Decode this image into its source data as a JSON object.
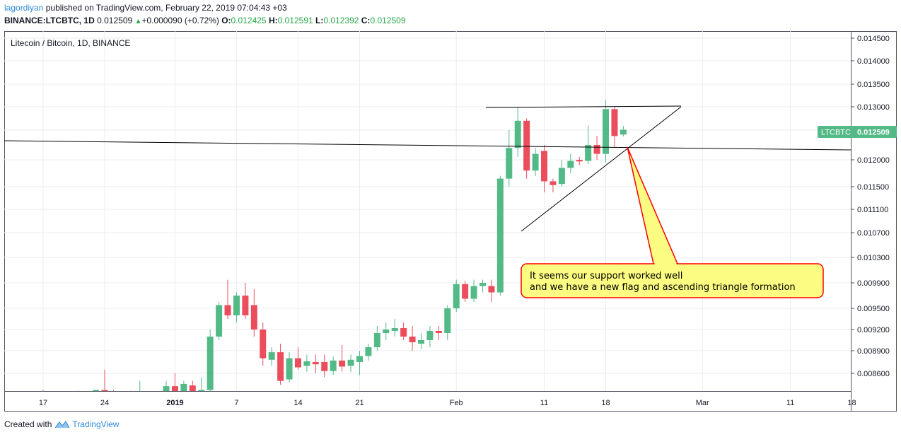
{
  "header": {
    "author": "lagordiyan",
    "published_text": "published on TradingView.com, February 22, 2019 07:04:43 +03",
    "symbol": "BINANCE:LTCBTC, 1D",
    "last": "0.012509",
    "change": "+0.000090 (+0.72%)",
    "o_label": "O:",
    "o_value": "0.012425",
    "h_label": "H:",
    "h_value": "0.012591",
    "l_label": "L:",
    "l_value": "0.012392",
    "c_label": "C:",
    "c_value": "0.012509"
  },
  "footer": {
    "created_with": "Created with",
    "brand": "TradingView"
  },
  "chart_data": {
    "type": "candlestick",
    "title": "Litecoin / Bitcoin, 1D, BINANCE",
    "price_ticks": [
      "0.014500",
      "0.014000",
      "0.013500",
      "0.013000",
      "0.012500",
      "0.012000",
      "0.011500",
      "0.011100",
      "0.010700",
      "0.010300",
      "0.009900",
      "0.009500",
      "0.009200",
      "0.008900",
      "0.008600"
    ],
    "x_ticks": [
      {
        "label": "17",
        "idx": 0
      },
      {
        "label": "24",
        "idx": 7
      },
      {
        "label": "2019",
        "idx": 15,
        "bold": true
      },
      {
        "label": "7",
        "idx": 22
      },
      {
        "label": "14",
        "idx": 29
      },
      {
        "label": "21",
        "idx": 36
      },
      {
        "label": "Feb",
        "idx": 47
      },
      {
        "label": "11",
        "idx": 57
      },
      {
        "label": "18",
        "idx": 64
      },
      {
        "label": "Mar",
        "idx": 75
      },
      {
        "label": "11",
        "idx": 85
      },
      {
        "label": "18",
        "idx": 92
      }
    ],
    "price_label": {
      "symbol": "LTCBTC",
      "value": "0.012509"
    },
    "colors": {
      "up": "#53b987",
      "down": "#eb4d5c",
      "grid": "#e9edf2",
      "annotation_bg": "#fbfc81",
      "annotation_border": "#ff0000"
    },
    "candles": [
      {
        "o": 0.00835,
        "h": 0.00838,
        "l": 0.00828,
        "c": 0.00832
      },
      {
        "o": 0.00832,
        "h": 0.00836,
        "l": 0.00829,
        "c": 0.00833
      },
      {
        "o": 0.00833,
        "h": 0.00836,
        "l": 0.00829,
        "c": 0.00831
      },
      {
        "o": 0.00831,
        "h": 0.00835,
        "l": 0.00828,
        "c": 0.00833
      },
      {
        "o": 0.00833,
        "h": 0.00837,
        "l": 0.00829,
        "c": 0.00831
      },
      {
        "o": 0.00831,
        "h": 0.00835,
        "l": 0.00828,
        "c": 0.00832
      },
      {
        "o": 0.00832,
        "h": 0.00836,
        "l": 0.00829,
        "c": 0.00838
      },
      {
        "o": 0.00838,
        "h": 0.00865,
        "l": 0.0083,
        "c": 0.00834
      },
      {
        "o": 0.00834,
        "h": 0.00838,
        "l": 0.00829,
        "c": 0.00831
      },
      {
        "o": 0.00831,
        "h": 0.00835,
        "l": 0.00828,
        "c": 0.00833
      },
      {
        "o": 0.00833,
        "h": 0.00837,
        "l": 0.00829,
        "c": 0.00832
      },
      {
        "o": 0.00832,
        "h": 0.0085,
        "l": 0.00829,
        "c": 0.00833
      },
      {
        "o": 0.00833,
        "h": 0.00836,
        "l": 0.00829,
        "c": 0.00831
      },
      {
        "o": 0.00831,
        "h": 0.00835,
        "l": 0.00828,
        "c": 0.00832
      },
      {
        "o": 0.0083,
        "h": 0.0085,
        "l": 0.00825,
        "c": 0.00843
      },
      {
        "o": 0.00843,
        "h": 0.0086,
        "l": 0.00835,
        "c": 0.00835
      },
      {
        "o": 0.00832,
        "h": 0.0085,
        "l": 0.00826,
        "c": 0.00846
      },
      {
        "o": 0.00844,
        "h": 0.0085,
        "l": 0.0083,
        "c": 0.00833
      },
      {
        "o": 0.00835,
        "h": 0.00855,
        "l": 0.0083,
        "c": 0.00838
      },
      {
        "o": 0.00838,
        "h": 0.0092,
        "l": 0.00835,
        "c": 0.0091
      },
      {
        "o": 0.0091,
        "h": 0.0096,
        "l": 0.00905,
        "c": 0.00955
      },
      {
        "o": 0.00955,
        "h": 0.00995,
        "l": 0.00935,
        "c": 0.0094
      },
      {
        "o": 0.0094,
        "h": 0.00975,
        "l": 0.0093,
        "c": 0.0097
      },
      {
        "o": 0.0097,
        "h": 0.0099,
        "l": 0.00935,
        "c": 0.0094
      },
      {
        "o": 0.00955,
        "h": 0.0098,
        "l": 0.0091,
        "c": 0.0092
      },
      {
        "o": 0.0092,
        "h": 0.0093,
        "l": 0.0087,
        "c": 0.0088
      },
      {
        "o": 0.00878,
        "h": 0.00895,
        "l": 0.0087,
        "c": 0.00888
      },
      {
        "o": 0.00888,
        "h": 0.009,
        "l": 0.00845,
        "c": 0.0085
      },
      {
        "o": 0.00852,
        "h": 0.00888,
        "l": 0.00848,
        "c": 0.0088
      },
      {
        "o": 0.0088,
        "h": 0.00895,
        "l": 0.00865,
        "c": 0.00868
      },
      {
        "o": 0.0087,
        "h": 0.00885,
        "l": 0.00862,
        "c": 0.00876
      },
      {
        "o": 0.00875,
        "h": 0.00885,
        "l": 0.0086,
        "c": 0.00872
      },
      {
        "o": 0.00875,
        "h": 0.00885,
        "l": 0.00855,
        "c": 0.00863
      },
      {
        "o": 0.00863,
        "h": 0.00882,
        "l": 0.00858,
        "c": 0.00877
      },
      {
        "o": 0.00877,
        "h": 0.00898,
        "l": 0.00862,
        "c": 0.00869
      },
      {
        "o": 0.0087,
        "h": 0.00885,
        "l": 0.00862,
        "c": 0.00878
      },
      {
        "o": 0.00875,
        "h": 0.0089,
        "l": 0.00858,
        "c": 0.00883
      },
      {
        "o": 0.00883,
        "h": 0.009,
        "l": 0.00877,
        "c": 0.00895
      },
      {
        "o": 0.00895,
        "h": 0.00925,
        "l": 0.0089,
        "c": 0.00915
      },
      {
        "o": 0.00915,
        "h": 0.0093,
        "l": 0.00905,
        "c": 0.0092
      },
      {
        "o": 0.00918,
        "h": 0.00935,
        "l": 0.0091,
        "c": 0.00922
      },
      {
        "o": 0.00922,
        "h": 0.0093,
        "l": 0.00905,
        "c": 0.0091
      },
      {
        "o": 0.0091,
        "h": 0.00925,
        "l": 0.0089,
        "c": 0.00902
      },
      {
        "o": 0.009,
        "h": 0.00915,
        "l": 0.00892,
        "c": 0.00905
      },
      {
        "o": 0.00905,
        "h": 0.00925,
        "l": 0.00895,
        "c": 0.00918
      },
      {
        "o": 0.00918,
        "h": 0.00925,
        "l": 0.00905,
        "c": 0.00915
      },
      {
        "o": 0.00915,
        "h": 0.00955,
        "l": 0.00905,
        "c": 0.0095
      },
      {
        "o": 0.0095,
        "h": 0.00995,
        "l": 0.00945,
        "c": 0.00988
      },
      {
        "o": 0.00988,
        "h": 0.00993,
        "l": 0.0096,
        "c": 0.00965
      },
      {
        "o": 0.00965,
        "h": 0.00995,
        "l": 0.0096,
        "c": 0.00985
      },
      {
        "o": 0.00985,
        "h": 0.00995,
        "l": 0.00975,
        "c": 0.0099
      },
      {
        "o": 0.00985,
        "h": 0.00995,
        "l": 0.0096,
        "c": 0.00975
      },
      {
        "o": 0.00975,
        "h": 0.0117,
        "l": 0.0097,
        "c": 0.01165
      },
      {
        "o": 0.01165,
        "h": 0.0125,
        "l": 0.0115,
        "c": 0.0122
      },
      {
        "o": 0.0122,
        "h": 0.013,
        "l": 0.01205,
        "c": 0.0127
      },
      {
        "o": 0.0127,
        "h": 0.01275,
        "l": 0.01165,
        "c": 0.0118
      },
      {
        "o": 0.0118,
        "h": 0.0122,
        "l": 0.0117,
        "c": 0.0121
      },
      {
        "o": 0.01215,
        "h": 0.01225,
        "l": 0.0114,
        "c": 0.0116
      },
      {
        "o": 0.0116,
        "h": 0.01165,
        "l": 0.0114,
        "c": 0.01153
      },
      {
        "o": 0.01155,
        "h": 0.012,
        "l": 0.0115,
        "c": 0.01185
      },
      {
        "o": 0.01185,
        "h": 0.0121,
        "l": 0.01175,
        "c": 0.01198
      },
      {
        "o": 0.012,
        "h": 0.01205,
        "l": 0.0119,
        "c": 0.01197
      },
      {
        "o": 0.01198,
        "h": 0.0126,
        "l": 0.01192,
        "c": 0.01225
      },
      {
        "o": 0.01225,
        "h": 0.0124,
        "l": 0.012,
        "c": 0.0121
      },
      {
        "o": 0.0121,
        "h": 0.01315,
        "l": 0.01195,
        "c": 0.01295
      },
      {
        "o": 0.01295,
        "h": 0.013,
        "l": 0.0122,
        "c": 0.0124
      },
      {
        "o": 0.012425,
        "h": 0.012591,
        "l": 0.012392,
        "c": 0.012509
      }
    ],
    "annotation": {
      "line1": "It seems our support worked well",
      "line2": "and we have a new flag and ascending triangle formation"
    }
  }
}
